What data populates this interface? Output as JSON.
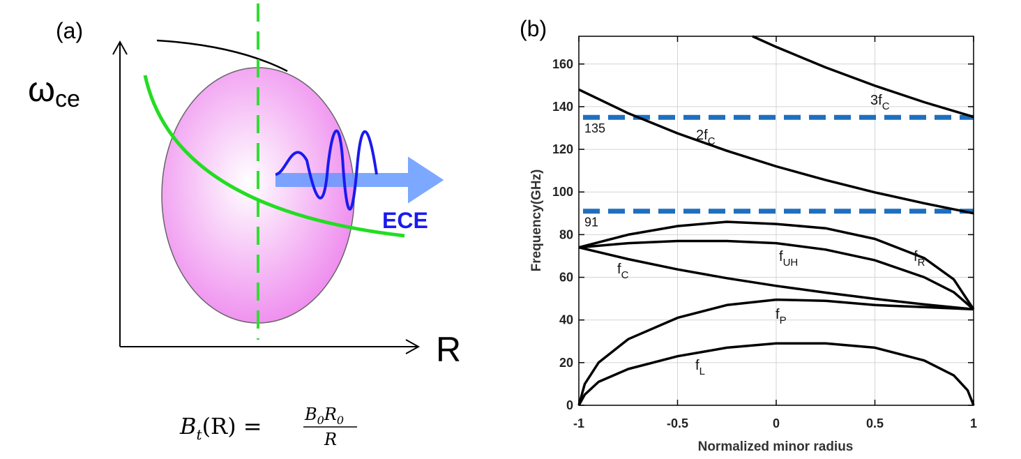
{
  "diagram": {
    "label": "(a)",
    "y_label": "ω",
    "y_label_sub": "ce",
    "x_label": "R",
    "wave_label": "ECE",
    "formula": {
      "lhs": "B",
      "lhs_sub": "t",
      "lhs_arg": "(R) =",
      "num_1": "B",
      "num_1_sub": "0",
      "num_2": "R",
      "num_2_sub": "0",
      "den": "R"
    }
  },
  "chart_data": {
    "type": "line",
    "panel_label": "(b)",
    "x_label": "Normalized minor radius",
    "y_label": "Frequency(GHz)",
    "xlim": [
      -1,
      1
    ],
    "ylim": [
      0,
      173
    ],
    "xticks": [
      -1,
      -0.5,
      0,
      0.5,
      1
    ],
    "yticks": [
      0,
      20,
      40,
      60,
      80,
      100,
      120,
      140,
      160
    ],
    "grid": true,
    "hlines": [
      135,
      91
    ],
    "hline_color": "#1f6fbf",
    "series": [
      {
        "name": "3f",
        "subscript": "C",
        "color": "#000000",
        "x": [
          -0.12,
          0,
          0.25,
          0.5,
          0.75,
          1
        ],
        "values": [
          173,
          168,
          158.4,
          149.8,
          142.1,
          135.2
        ]
      },
      {
        "name": "2f",
        "subscript": "C",
        "color": "#000000",
        "x": [
          -1,
          -0.75,
          -0.5,
          -0.25,
          0,
          0.25,
          0.5,
          0.75,
          1
        ],
        "values": [
          148,
          136.9,
          127.5,
          119.3,
          112,
          105.6,
          99.8,
          94.7,
          90
        ]
      },
      {
        "name": "f",
        "subscript": "UH",
        "color": "#000000",
        "x": [
          -1,
          -0.75,
          -0.5,
          -0.25,
          0,
          0.25,
          0.5,
          0.75,
          0.9,
          1
        ],
        "values": [
          74,
          76,
          77,
          77,
          76,
          73,
          68,
          60,
          53,
          45
        ]
      },
      {
        "name": "f",
        "subscript": "R",
        "color": "#000000",
        "x": [
          -1,
          -0.75,
          -0.5,
          -0.25,
          0,
          0.25,
          0.5,
          0.75,
          0.9,
          1
        ],
        "values": [
          74,
          80,
          84,
          86,
          85,
          83,
          78,
          69,
          59,
          45
        ]
      },
      {
        "name": "f",
        "subscript": "C",
        "color": "#000000",
        "x": [
          -1,
          -0.75,
          -0.5,
          -0.25,
          0,
          0.25,
          0.5,
          0.75,
          1
        ],
        "values": [
          74,
          68.5,
          63.7,
          59.6,
          56,
          52.8,
          49.9,
          47.3,
          45
        ]
      },
      {
        "name": "f",
        "subscript": "P",
        "color": "#000000",
        "x": [
          -1,
          -0.97,
          -0.9,
          -0.75,
          -0.5,
          -0.25,
          0,
          0.25,
          0.5,
          0.75,
          1
        ],
        "values": [
          0,
          10,
          20,
          31,
          41,
          47,
          49.5,
          49,
          47,
          46,
          45
        ]
      },
      {
        "name": "f",
        "subscript": "L",
        "color": "#000000",
        "x": [
          -1,
          -0.97,
          -0.9,
          -0.75,
          -0.5,
          -0.25,
          0,
          0.25,
          0.5,
          0.75,
          0.9,
          0.97,
          1
        ],
        "values": [
          0,
          5,
          11,
          17,
          23,
          27,
          29,
          29,
          27,
          21,
          14,
          7,
          0
        ]
      }
    ]
  }
}
